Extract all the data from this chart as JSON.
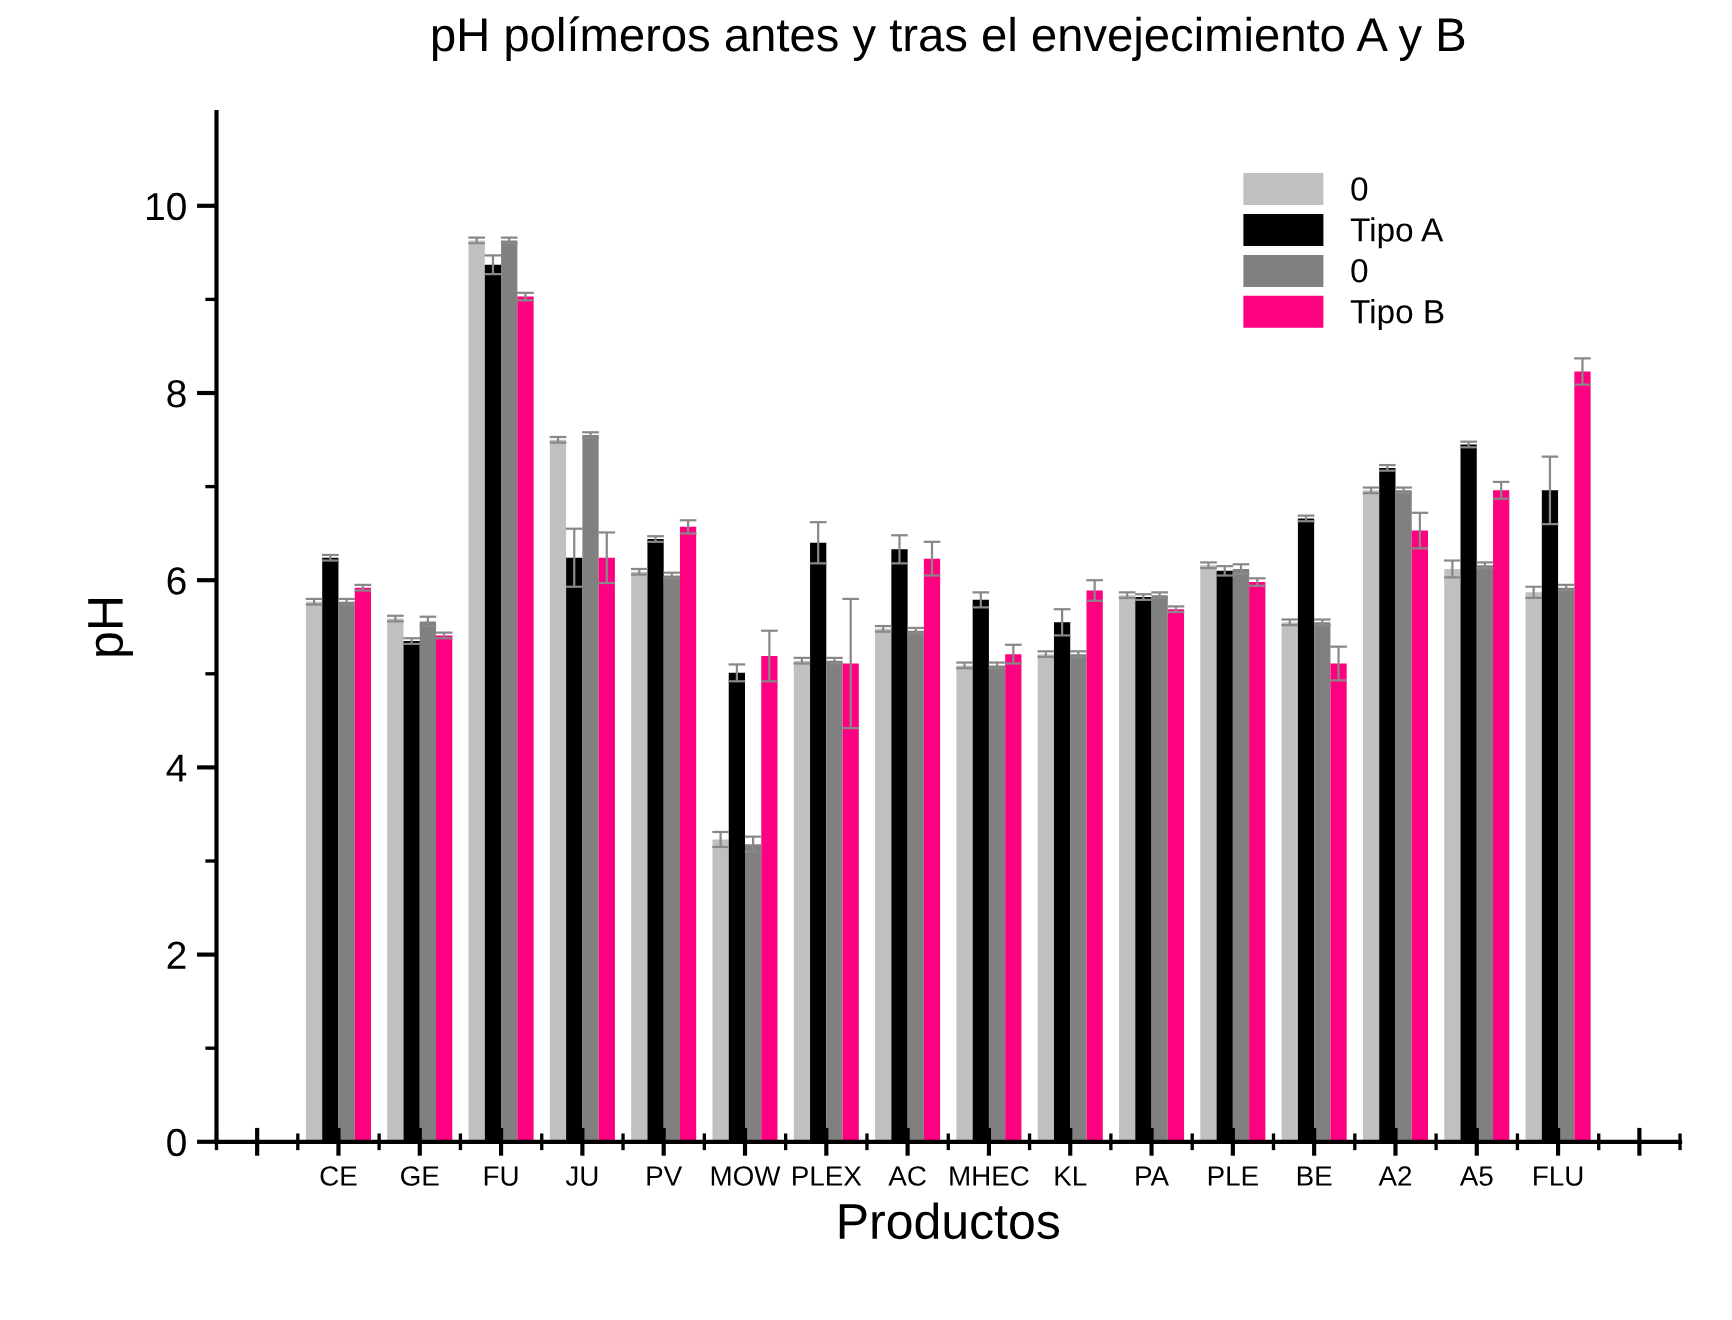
{
  "chart_data": {
    "type": "bar",
    "title": "pH polímeros antes y tras el envejecimiento A y B",
    "xlabel": "Productos",
    "ylabel": "pH",
    "categories": [
      null,
      "CE",
      "GE",
      "FU",
      "JU",
      "PV",
      "MOW",
      "PLEX",
      "AC",
      "MHEC",
      "KL",
      "PA",
      "PLE",
      "BE",
      "A2",
      "A5",
      "FLU",
      null
    ],
    "series": [
      {
        "name": "0",
        "color": "#c0c0c0",
        "values": [
          null,
          5.77,
          5.59,
          9.63,
          7.5,
          6.09,
          3.23,
          5.14,
          5.48,
          5.09,
          5.21,
          5.84,
          6.16,
          5.55,
          6.96,
          6.12,
          5.87,
          null
        ],
        "errors": [
          null,
          0.03,
          0.03,
          0.03,
          0.03,
          0.03,
          0.08,
          0.03,
          0.03,
          0.03,
          0.03,
          0.03,
          0.03,
          0.03,
          0.03,
          0.09,
          0.06,
          null
        ]
      },
      {
        "name": "Tipo A",
        "color": "#000000",
        "values": [
          null,
          6.24,
          5.35,
          9.37,
          6.24,
          6.44,
          5.01,
          6.4,
          6.33,
          5.79,
          5.55,
          5.82,
          6.1,
          6.66,
          7.2,
          7.45,
          6.96,
          null
        ],
        "errors": [
          null,
          0.03,
          0.03,
          0.1,
          0.31,
          0.03,
          0.09,
          0.22,
          0.15,
          0.08,
          0.14,
          0.03,
          0.05,
          0.03,
          0.03,
          0.03,
          0.36,
          null
        ]
      },
      {
        "name": "0",
        "color": "#808080",
        "values": [
          null,
          5.77,
          5.56,
          9.63,
          7.55,
          6.05,
          3.18,
          5.14,
          5.46,
          5.09,
          5.21,
          5.84,
          6.12,
          5.55,
          6.96,
          6.16,
          5.92,
          null
        ],
        "errors": [
          null,
          0.03,
          0.05,
          0.03,
          0.03,
          0.03,
          0.08,
          0.03,
          0.03,
          0.03,
          0.03,
          0.03,
          0.05,
          0.03,
          0.03,
          0.03,
          0.03,
          null
        ]
      },
      {
        "name": "Tipo B",
        "color": "#ff0080",
        "values": [
          null,
          5.92,
          5.41,
          9.03,
          6.24,
          6.57,
          5.19,
          5.11,
          6.23,
          5.21,
          5.89,
          5.69,
          5.98,
          5.11,
          6.53,
          6.96,
          8.23,
          null
        ],
        "errors": [
          null,
          0.03,
          0.03,
          0.04,
          0.27,
          0.07,
          0.27,
          0.69,
          0.18,
          0.1,
          0.11,
          0.03,
          0.04,
          0.18,
          0.19,
          0.09,
          0.14,
          null
        ]
      }
    ],
    "ylim": [
      0,
      11
    ],
    "yticks": [
      0,
      2,
      4,
      6,
      8,
      10
    ],
    "legend": "top right",
    "grid": false
  }
}
